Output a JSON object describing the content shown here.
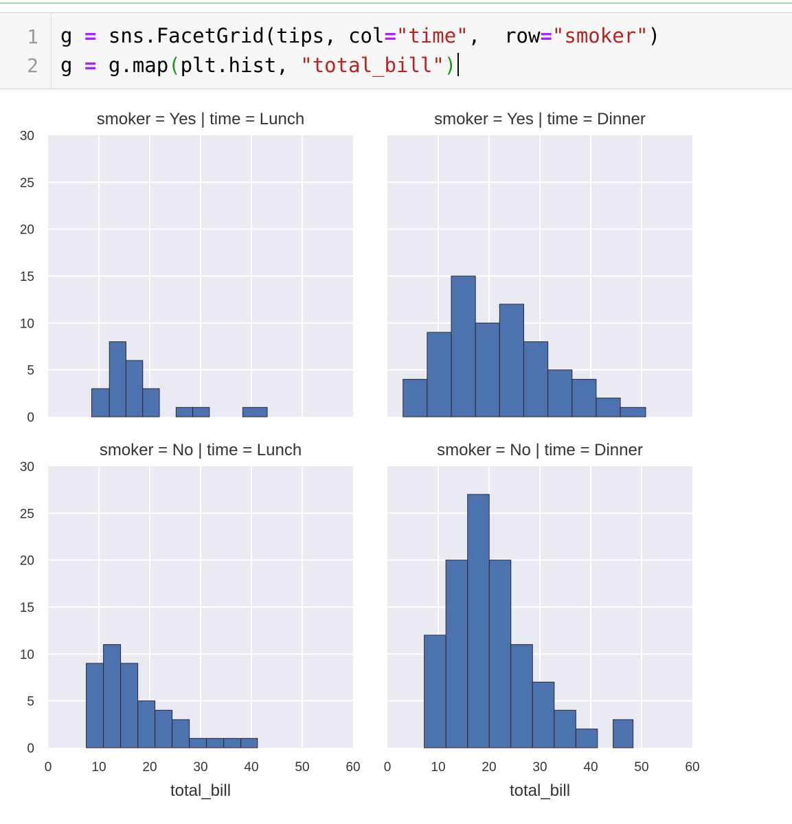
{
  "code": {
    "line1": {
      "num": "1",
      "a": "g",
      "eq": "=",
      "b": "sns.FacetGrid(tips, col",
      "eq2": "=",
      "s1": "\"time\"",
      "c": ",  row",
      "eq3": "=",
      "s2": "\"smoker\"",
      "d": ")"
    },
    "line2": {
      "num": "2",
      "a": "g",
      "eq": "=",
      "b": "g.map",
      "p1": "(",
      "c": "plt.hist, ",
      "s1": "\"total_bill\"",
      "p2": ")"
    }
  },
  "colors": {
    "bar": "#4c72b0",
    "bar_edge": "#2a2a2a",
    "panel_bg": "#eaeaf2",
    "grid": "#ffffff"
  },
  "chart_data": {
    "type": "bar",
    "x_label": "total_bill",
    "x_range": [
      0,
      60
    ],
    "y_range": [
      0,
      30
    ],
    "x_ticks": [
      0,
      10,
      20,
      30,
      40,
      50,
      60
    ],
    "y_ticks": [
      0,
      5,
      10,
      15,
      20,
      25,
      30
    ],
    "panels": [
      {
        "title": "smoker = Yes | time = Lunch",
        "edges": [
          8.58,
          12.06,
          15.33,
          18.62,
          21.9,
          25.18,
          28.46,
          31.74,
          35.02,
          38.3,
          43.11
        ],
        "counts": [
          3,
          8,
          6,
          3,
          0,
          1,
          1,
          0,
          0,
          1
        ]
      },
      {
        "title": "smoker = Yes | time = Dinner",
        "edges": [
          3.07,
          7.82,
          12.57,
          17.32,
          22.07,
          26.82,
          31.57,
          36.32,
          41.07,
          45.82,
          50.81
        ],
        "counts": [
          4,
          9,
          15,
          10,
          12,
          8,
          5,
          4,
          2,
          1
        ]
      },
      {
        "title": "smoker = No | time = Lunch",
        "edges": [
          7.51,
          10.89,
          14.27,
          17.65,
          21.03,
          24.41,
          27.79,
          31.17,
          34.55,
          37.93,
          41.19
        ],
        "counts": [
          9,
          11,
          9,
          5,
          4,
          3,
          1,
          1,
          1,
          1
        ]
      },
      {
        "title": "smoker = No | time = Dinner",
        "edges": [
          7.25,
          11.51,
          15.77,
          20.03,
          24.29,
          28.55,
          32.81,
          37.07,
          41.33,
          44.4,
          48.33
        ],
        "counts": [
          12,
          20,
          27,
          20,
          11,
          7,
          4,
          2,
          0,
          3
        ]
      }
    ]
  }
}
